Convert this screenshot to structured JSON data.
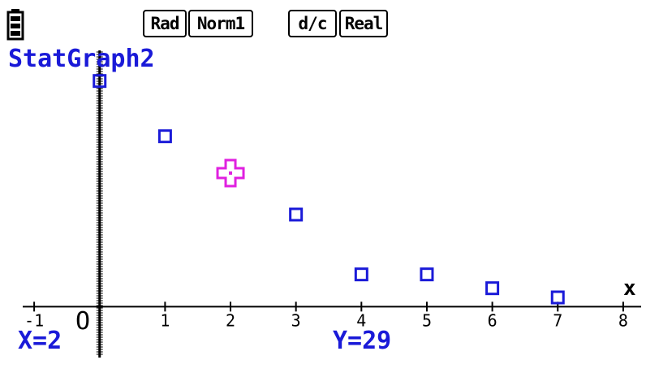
{
  "status_bar": {
    "battery_icon": "battery-icon",
    "angle_mode": "Rad",
    "display_mode": "Norm1",
    "fraction_mode": "d/c",
    "complex_mode": "Real"
  },
  "graph": {
    "title": "StatGraph2",
    "x_axis_label": "x",
    "origin_label": "O",
    "cursor_x_readout": "X=2",
    "cursor_y_readout": "Y=29",
    "cursor_icon": "trace-cursor-icon",
    "point_color": "#1a1ad8",
    "cursor_color": "#e020e0",
    "text_color": "#1a1ad8"
  },
  "chart_data": {
    "type": "scatter",
    "title": "StatGraph2",
    "xlabel": "x",
    "ylabel": "",
    "x_ticks": [
      -1,
      1,
      2,
      3,
      4,
      5,
      6,
      7,
      8
    ],
    "xlim": [
      -1.15,
      8.15
    ],
    "ylim": [
      -4,
      56
    ],
    "grid": false,
    "series": [
      {
        "x": [
          0,
          1,
          3,
          4,
          5,
          6,
          7
        ],
        "y": [
          49,
          37,
          20,
          7,
          7,
          4,
          2
        ],
        "marker": "square"
      }
    ],
    "trace_cursor": {
      "x": 2,
      "y": 29
    }
  }
}
